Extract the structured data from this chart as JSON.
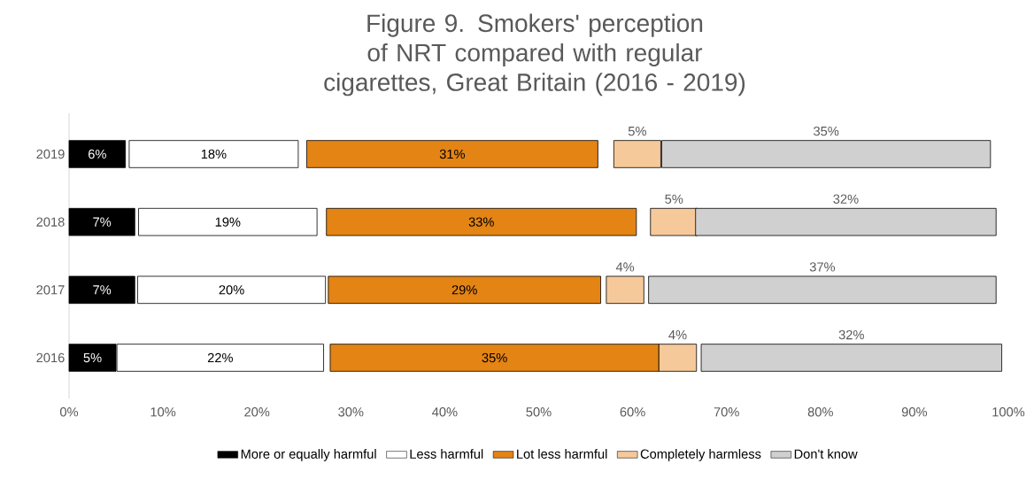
{
  "chart_data": {
    "type": "bar",
    "orientation": "horizontal",
    "title": "Figure 9. Smokers' perception of NRT compared with regular cigarettes, Great Britain (2016 - 2019)",
    "categories": [
      "2019",
      "2018",
      "2017",
      "2016"
    ],
    "series": [
      {
        "name": "More or equally harmful",
        "color": "#000000",
        "base": [
          0,
          0,
          0,
          0
        ],
        "values": [
          6,
          7,
          7,
          5
        ],
        "value_labels": [
          "6%",
          "7%",
          "7%",
          "5%"
        ]
      },
      {
        "name": "Less harmful",
        "color": "#ffffff",
        "base": [
          6.4,
          7.4,
          7.3,
          5.1
        ],
        "values": [
          18,
          19,
          20,
          22
        ],
        "value_labels": [
          "18%",
          "19%",
          "20%",
          "22%"
        ]
      },
      {
        "name": "Lot less harmful",
        "color": "#e38414",
        "base": [
          25.3,
          27.4,
          27.6,
          27.8
        ],
        "values": [
          31,
          33,
          29,
          35
        ],
        "value_labels": [
          "31%",
          "33%",
          "29%",
          "35%"
        ]
      },
      {
        "name": "Completely harmless",
        "color": "#f6c99b",
        "base": [
          58.0,
          61.9,
          57.2,
          62.8
        ],
        "values": [
          5,
          5,
          4,
          4
        ],
        "value_labels": [
          "5%",
          "5%",
          "4%",
          "4%"
        ]
      },
      {
        "name": "Don't know",
        "color": "#d0d0d0",
        "base": [
          63.1,
          66.7,
          61.7,
          67.3
        ],
        "values": [
          35,
          32,
          37,
          32
        ],
        "value_labels": [
          "35%",
          "32%",
          "37%",
          "32%"
        ]
      }
    ],
    "xlim": [
      0,
      100
    ],
    "xticks": [
      {
        "value": 0,
        "label": "0%"
      },
      {
        "value": 10,
        "label": "10%"
      },
      {
        "value": 20,
        "label": "20%"
      },
      {
        "value": 30,
        "label": "30%"
      },
      {
        "value": 40,
        "label": "40%"
      },
      {
        "value": 50,
        "label": "50%"
      },
      {
        "value": 60,
        "label": "60%"
      },
      {
        "value": 70,
        "label": "70%"
      },
      {
        "value": 80,
        "label": "80%"
      },
      {
        "value": 90,
        "label": "90%"
      },
      {
        "value": 100,
        "label": "100%"
      }
    ],
    "legend": "bottom"
  }
}
